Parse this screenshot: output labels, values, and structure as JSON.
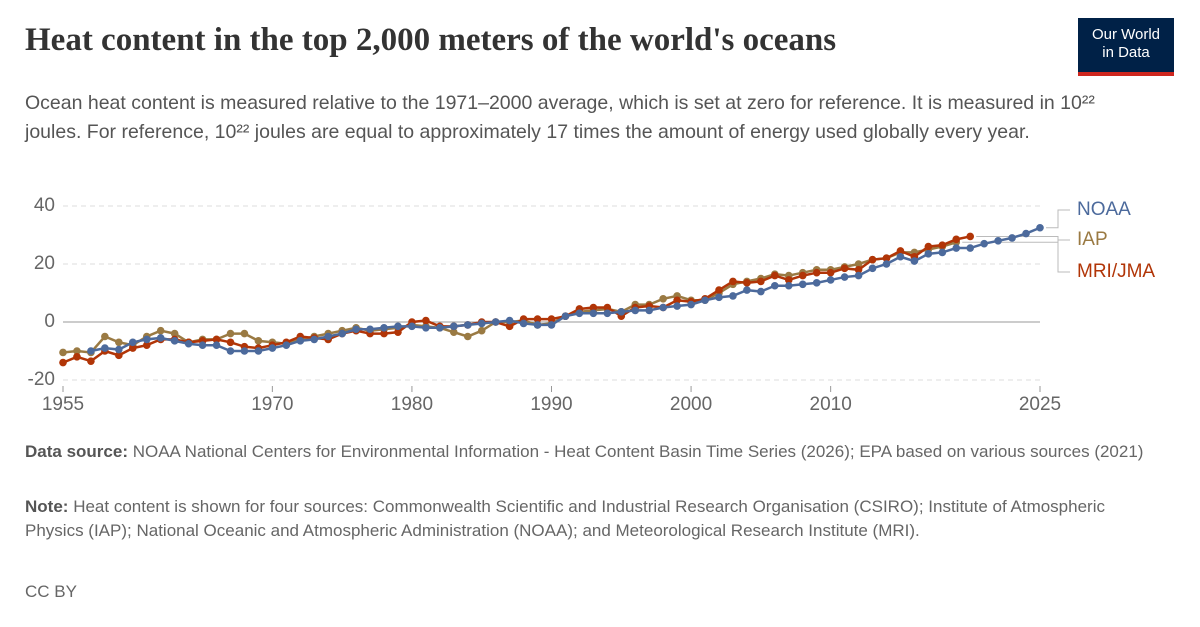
{
  "chart_data": {
    "type": "line",
    "title": "Heat content in the top 2,000 meters of the world's oceans",
    "subtitle": "Ocean heat content is measured relative to the 1971–2000 average, which is set at zero for reference. It is measured in 10²² joules. For reference, 10²² joules are equal to approximately 17 times the amount of energy used globally every year.",
    "logo": "Our World in Data",
    "source_label": "Data source:",
    "source": "NOAA National Centers for Environmental Information - Heat Content Basin Time Series (2026); EPA based on various sources (2021)",
    "note_label": "Note:",
    "note": "Heat content is shown for four sources: Commonwealth Scientific and Industrial Research Organisation (CSIRO); Institute of Atmospheric Physics (IAP); National Oceanic and Atmospheric Administration (NOAA); and Meteorological Research Institute (MRI).",
    "license": "CC BY",
    "x": [
      1955,
      1956,
      1957,
      1958,
      1959,
      1960,
      1961,
      1962,
      1963,
      1964,
      1965,
      1966,
      1967,
      1968,
      1969,
      1970,
      1971,
      1972,
      1973,
      1974,
      1975,
      1976,
      1977,
      1978,
      1979,
      1980,
      1981,
      1982,
      1983,
      1984,
      1985,
      1986,
      1987,
      1988,
      1989,
      1990,
      1991,
      1992,
      1993,
      1994,
      1995,
      1996,
      1997,
      1998,
      1999,
      2000,
      2001,
      2002,
      2003,
      2004,
      2005,
      2006,
      2007,
      2008,
      2009,
      2010,
      2011,
      2012,
      2013,
      2014,
      2015,
      2016,
      2017,
      2018,
      2019,
      2020,
      2021,
      2022,
      2023,
      2024,
      2025
    ],
    "xlim": [
      1955,
      2025
    ],
    "xticks": [
      1955,
      1970,
      1980,
      1990,
      2000,
      2010,
      2025
    ],
    "ylim": [
      -20,
      40
    ],
    "yticks": [
      -20,
      0,
      20,
      40
    ],
    "grid": true,
    "series": [
      {
        "name": "IAP",
        "color": "#9a7a43",
        "values": [
          -10.5,
          -10,
          -10.5,
          -5,
          -7,
          -8,
          -5,
          -3,
          -4,
          -7,
          -6,
          -6,
          -4,
          -4,
          -6.5,
          -7,
          -7.5,
          -6,
          -5,
          -4,
          -3,
          -2,
          -3,
          -2.5,
          -2,
          -1,
          -1.5,
          -2,
          -3.5,
          -5,
          -3,
          0,
          0,
          0.5,
          -1,
          -0.5,
          2,
          3.5,
          4,
          4.5,
          3.5,
          6,
          6,
          8,
          9,
          7.5,
          7.5,
          10,
          13,
          14,
          15,
          16.5,
          16,
          17,
          18,
          18,
          19,
          20,
          21.5,
          22,
          24,
          24,
          25,
          26,
          27.5,
          null,
          null,
          null,
          null,
          null,
          null
        ]
      },
      {
        "name": "MRI/JMA",
        "color": "#b13507",
        "values": [
          -14,
          -12,
          -13.5,
          -10,
          -11.5,
          -9,
          -8,
          -6,
          -6,
          -7,
          -6.5,
          -6,
          -7,
          -8.5,
          -9,
          -8,
          -7,
          -5,
          -5.5,
          -6,
          -4,
          -3,
          -4,
          -4,
          -3.5,
          0,
          0.5,
          -1.5,
          -1.5,
          -1,
          0,
          0,
          -1.5,
          1,
          1,
          1,
          2,
          4.5,
          5,
          5,
          2,
          5,
          5.5,
          5,
          7.5,
          7,
          8,
          11,
          14,
          13.5,
          14,
          16,
          14.5,
          16,
          17,
          17,
          18.5,
          18,
          21.5,
          22,
          24.5,
          22.5,
          26,
          26.5,
          28.5,
          29.5,
          null,
          null,
          null,
          null,
          null
        ]
      },
      {
        "name": "NOAA",
        "color": "#4c6a9c",
        "values": [
          null,
          null,
          -10,
          -9,
          -9.5,
          -7,
          -6,
          -5.5,
          -6.5,
          -7.5,
          -8,
          -8,
          -10,
          -10,
          -10,
          -9,
          -8,
          -6.5,
          -6,
          -5,
          -4,
          -2.5,
          -2.5,
          -2,
          -1.5,
          -1.5,
          -2,
          -2,
          -1.5,
          -1,
          -0.5,
          0,
          0.5,
          -0.5,
          -1,
          -1,
          2,
          3,
          3,
          3,
          3.5,
          4,
          4,
          5,
          5.5,
          6,
          7.5,
          8.5,
          9,
          11,
          10.5,
          12.5,
          12.5,
          13,
          13.5,
          14.5,
          15.5,
          16,
          18.5,
          20,
          22.5,
          21,
          23.5,
          24,
          25.5,
          25.5,
          27,
          28,
          29,
          30.5,
          32.5
        ]
      }
    ]
  }
}
